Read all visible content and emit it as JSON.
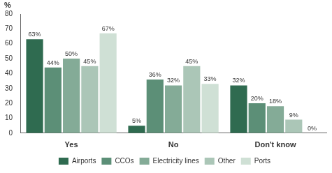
{
  "chart_data": {
    "type": "bar",
    "ylabel": "%",
    "categories": [
      "Yes",
      "No",
      "Don't know"
    ],
    "series": [
      {
        "name": "Airports",
        "color": "#2f6b50",
        "values": [
          63,
          5,
          32
        ],
        "value_labels": [
          "63%",
          "5%",
          "32%"
        ]
      },
      {
        "name": "CCOs",
        "color": "#5c8f77",
        "values": [
          44,
          36,
          20
        ],
        "value_labels": [
          "44%",
          "36%",
          "20%"
        ]
      },
      {
        "name": "Electricity lines",
        "color": "#84ab97",
        "values": [
          50,
          32,
          18
        ],
        "value_labels": [
          "50%",
          "32%",
          "18%"
        ]
      },
      {
        "name": "Other",
        "color": "#abc6b7",
        "values": [
          45,
          45,
          9
        ],
        "value_labels": [
          "45%",
          "45%",
          "9%"
        ]
      },
      {
        "name": "Ports",
        "color": "#cfe0d5",
        "values": [
          67,
          33,
          0
        ],
        "value_labels": [
          "67%",
          "33%",
          "0%"
        ]
      }
    ],
    "ylim": [
      0,
      80
    ],
    "yticks": [
      0,
      10,
      20,
      30,
      40,
      50,
      60,
      70,
      80
    ],
    "grid": false,
    "legend": "bottom",
    "data_labels": true
  }
}
